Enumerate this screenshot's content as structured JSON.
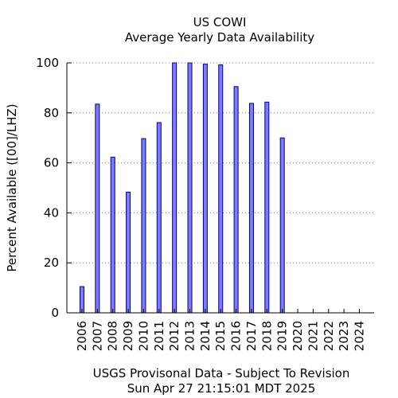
{
  "chart_data": {
    "type": "bar",
    "title": "US COWI",
    "subtitle": "Average Yearly Data Availability",
    "ylabel": "Percent Available ([00]/LHZ)",
    "xlabel": "USGS Provisonal Data - Subject To Revision",
    "timestamp": "Sun Apr 27 21:15:01 MDT 2025",
    "categories": [
      "2006",
      "2007",
      "2008",
      "2009",
      "2010",
      "2011",
      "2012",
      "2013",
      "2014",
      "2015",
      "2016",
      "2017",
      "2018",
      "2019",
      "2020",
      "2021",
      "2022",
      "2023",
      "2024"
    ],
    "values": [
      10.5,
      83.5,
      62.3,
      48.3,
      69.7,
      76.1,
      100,
      100,
      99.5,
      99.2,
      90.5,
      83.8,
      84.3,
      70.0,
      null,
      null,
      null,
      null,
      null
    ],
    "ylim": [
      0,
      100
    ],
    "yticks": [
      "0",
      "20",
      "40",
      "60",
      "80",
      "100"
    ],
    "grid": true,
    "bar_color": "#7b7bff"
  }
}
